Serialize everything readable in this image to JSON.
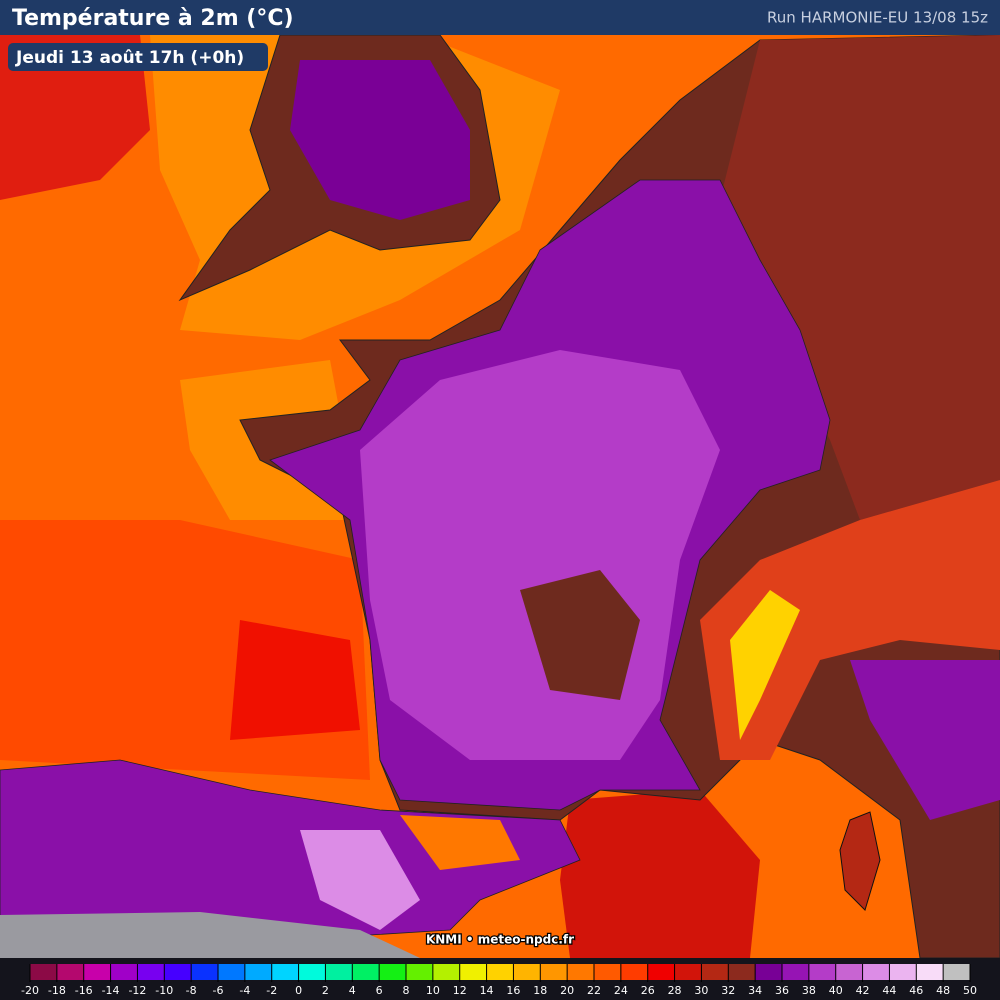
{
  "header": {
    "title": "Température à 2m (°C)",
    "run": "Run HARMONIE-EU 13/08 15z"
  },
  "date_label": "Jeudi 13 août 17h (+0h)",
  "credit": "KNMI • meteo-npdc.fr",
  "legend": {
    "ticks": [
      -20,
      -18,
      -16,
      -14,
      -12,
      -10,
      -8,
      -6,
      -4,
      -2,
      0,
      2,
      4,
      6,
      8,
      10,
      12,
      14,
      16,
      18,
      20,
      22,
      24,
      26,
      28,
      30,
      32,
      34,
      36,
      38,
      40,
      42,
      44,
      46,
      48,
      50
    ],
    "colors": [
      "#8c0a46",
      "#b4086e",
      "#c800aa",
      "#a000c8",
      "#7800f0",
      "#4600ff",
      "#0a32ff",
      "#0078ff",
      "#00aaff",
      "#00d4ff",
      "#00fadc",
      "#00f0a0",
      "#00f064",
      "#14f014",
      "#64f000",
      "#b4f000",
      "#f0f000",
      "#ffd200",
      "#ffb400",
      "#ff9600",
      "#ff7800",
      "#ff5a00",
      "#ff3c00",
      "#f00000",
      "#d2140a",
      "#b42814",
      "#8c2a1e",
      "#780096",
      "#9614b4",
      "#b43cc8",
      "#c864d2",
      "#dc8ce6",
      "#ebb4f0",
      "#f8dcf8",
      "#c0c0c0"
    ]
  }
}
